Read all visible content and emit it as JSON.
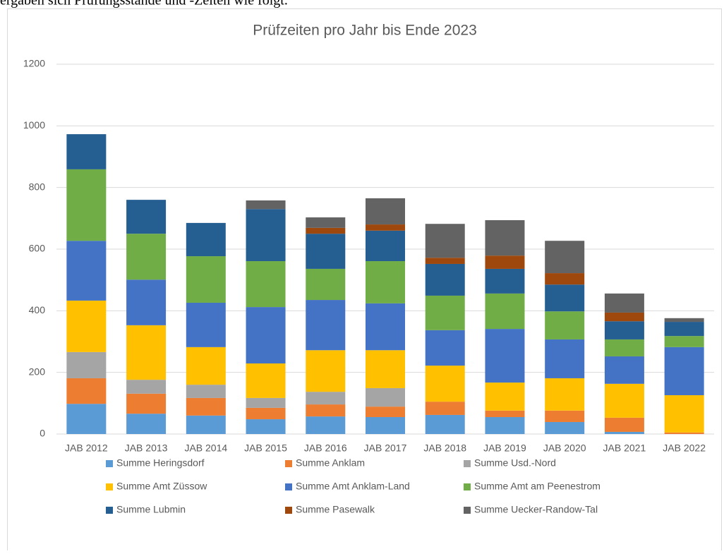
{
  "document": {
    "text": "ergaben sich Prüfungsstände und -Zeiten wie folgt."
  },
  "chart_data": {
    "type": "stacked_bar",
    "title": "Prüfzeiten pro Jahr bis Ende 2023",
    "categories": [
      "JAB 2012",
      "JAB 2013",
      "JAB 2014",
      "JAB 2015",
      "JAB 2016",
      "JAB 2017",
      "JAB 2018",
      "JAB 2019",
      "JAB 2020",
      "JAB 2021",
      "JAB 2022"
    ],
    "series": [
      {
        "name": "Summe Heringsdorf",
        "color": "#5b9bd5",
        "values": [
          98,
          66,
          60,
          48,
          57,
          55,
          62,
          55,
          39,
          7,
          0
        ]
      },
      {
        "name": "Summe Anklam",
        "color": "#ed7d31",
        "values": [
          83,
          65,
          57,
          37,
          39,
          34,
          43,
          21,
          37,
          46,
          5
        ]
      },
      {
        "name": "Summe Usd.-Nord",
        "color": "#a5a5a5",
        "values": [
          85,
          45,
          43,
          32,
          41,
          60,
          0,
          0,
          0,
          0,
          0
        ]
      },
      {
        "name": "Summe Amt Züssow",
        "color": "#ffc000",
        "values": [
          167,
          177,
          122,
          112,
          135,
          123,
          117,
          91,
          105,
          110,
          121
        ]
      },
      {
        "name": "Summe Amt Anklam-Land",
        "color": "#4472c4",
        "values": [
          194,
          148,
          144,
          183,
          163,
          152,
          115,
          174,
          126,
          89,
          156
        ]
      },
      {
        "name": "Summe Amt am Peenestrom",
        "color": "#70ad47",
        "values": [
          232,
          149,
          151,
          149,
          101,
          137,
          112,
          115,
          91,
          55,
          36
        ]
      },
      {
        "name": "Summe Lubmin",
        "color": "#255e91",
        "values": [
          114,
          110,
          108,
          169,
          114,
          99,
          103,
          80,
          87,
          59,
          46
        ]
      },
      {
        "name": "Summe Pasewalk",
        "color": "#9e480e",
        "values": [
          0,
          0,
          0,
          0,
          19,
          20,
          20,
          43,
          37,
          28,
          0
        ]
      },
      {
        "name": "Summe Uecker-Randow-Tal",
        "color": "#636363",
        "values": [
          0,
          0,
          0,
          28,
          34,
          85,
          110,
          115,
          105,
          62,
          12
        ]
      }
    ],
    "ylim": [
      0,
      1200
    ],
    "yticks": [
      0,
      200,
      400,
      600,
      800,
      1000,
      1200
    ],
    "grid": true,
    "legend": "bottom"
  }
}
